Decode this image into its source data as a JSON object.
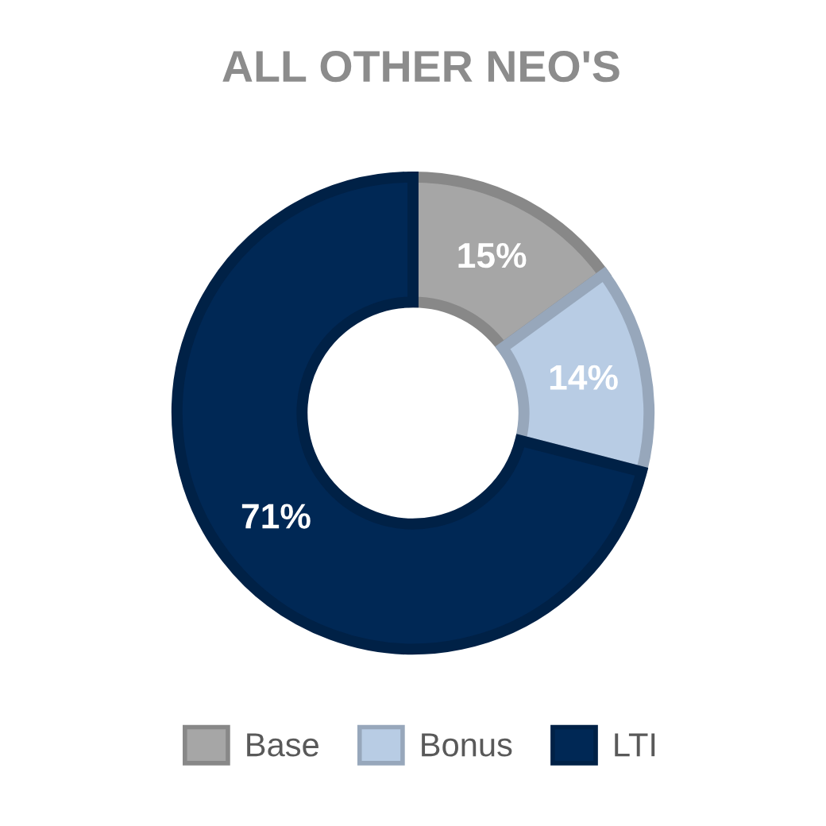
{
  "chart_data": {
    "type": "donut",
    "title": "ALL OTHER NEO'S",
    "categories": [
      "Base",
      "Bonus",
      "LTI"
    ],
    "values": [
      15,
      14,
      71
    ],
    "colors": [
      "#a6a6a6",
      "#b8cce4",
      "#002855"
    ],
    "value_labels": [
      "15%",
      "14%",
      "71%"
    ],
    "legend": "bottom"
  }
}
